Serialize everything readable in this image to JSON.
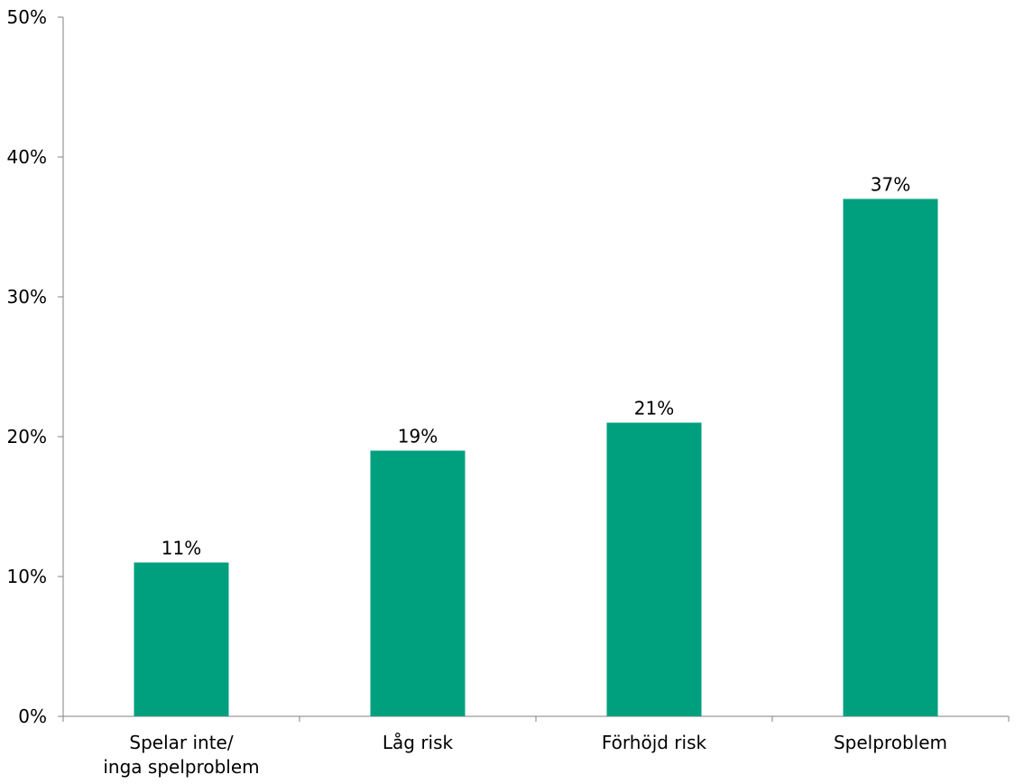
{
  "chart_data": {
    "type": "bar",
    "categories": [
      [
        "Spelar inte/",
        "inga spelproblem"
      ],
      [
        "Låg risk"
      ],
      [
        "Förhöjd risk"
      ],
      [
        "Spelproblem"
      ]
    ],
    "values": [
      11,
      19,
      21,
      37
    ],
    "value_labels": [
      "11%",
      "19%",
      "21%",
      "37%"
    ],
    "yticks": [
      0,
      10,
      20,
      30,
      40,
      50
    ],
    "ytick_labels": [
      "0%",
      "10%",
      "20%",
      "30%",
      "40%",
      "50%"
    ],
    "ylim": [
      0,
      50
    ],
    "grid": false,
    "bar_color": "#00a07f",
    "title": "",
    "xlabel": "",
    "ylabel": ""
  }
}
